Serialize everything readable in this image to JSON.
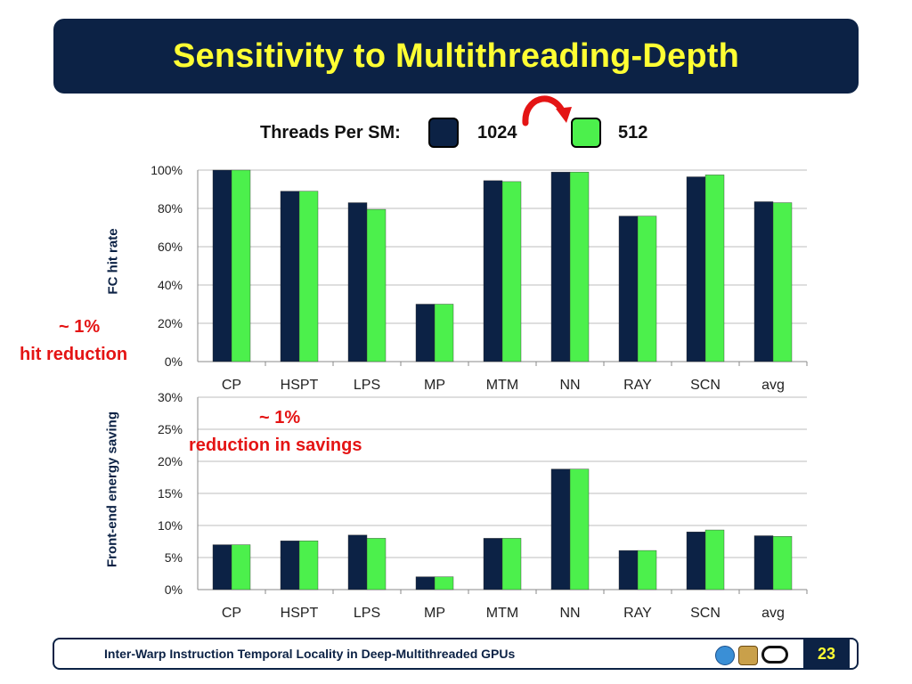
{
  "title": "Sensitivity to Multithreading-Depth",
  "legend": {
    "label": "Threads Per SM:",
    "items": [
      {
        "name": "1024",
        "color": "#0c2245"
      },
      {
        "name": "512",
        "color": "#4cf04c"
      }
    ]
  },
  "colors": {
    "title_bg": "#0c2245",
    "title_text": "#ffff33",
    "annotation": "#e41414",
    "arrow": "#e41414"
  },
  "annotations": {
    "top_line1": "~ 1%",
    "top_line2": "hit reduction",
    "bottom_line1": "~ 1%",
    "bottom_line2": "reduction in savings"
  },
  "chart_data": [
    {
      "type": "bar",
      "ylabel": "FC hit rate",
      "ylim": [
        0,
        100
      ],
      "yticks": [
        "0%",
        "20%",
        "40%",
        "60%",
        "80%",
        "100%"
      ],
      "ytick_values": [
        0,
        20,
        40,
        60,
        80,
        100
      ],
      "grid": true,
      "categories": [
        "CP",
        "HSPT",
        "LPS",
        "MP",
        "MTM",
        "NN",
        "RAY",
        "SCN",
        "avg"
      ],
      "series": [
        {
          "name": "1024",
          "values": [
            100,
            89,
            83,
            30,
            94.5,
            99,
            76,
            96.5,
            83.5
          ]
        },
        {
          "name": "512",
          "values": [
            100,
            89,
            79.5,
            30,
            94,
            99,
            76,
            97.5,
            83
          ]
        }
      ]
    },
    {
      "type": "bar",
      "ylabel": "Front-end energy saving",
      "ylim": [
        0,
        30
      ],
      "yticks": [
        "0%",
        "5%",
        "10%",
        "15%",
        "20%",
        "25%",
        "30%"
      ],
      "ytick_values": [
        0,
        5,
        10,
        15,
        20,
        25,
        30
      ],
      "grid": true,
      "categories": [
        "CP",
        "HSPT",
        "LPS",
        "MP",
        "MTM",
        "NN",
        "RAY",
        "SCN",
        "avg"
      ],
      "series": [
        {
          "name": "1024",
          "values": [
            7,
            7.6,
            8.5,
            2,
            8,
            18.8,
            6.1,
            9,
            8.4
          ]
        },
        {
          "name": "512",
          "values": [
            7,
            7.6,
            8,
            2,
            8,
            18.8,
            6.1,
            9.3,
            8.3
          ]
        }
      ]
    }
  ],
  "footer": {
    "text": "Inter-Warp Instruction Temporal Locality in Deep-Multithreaded GPUs",
    "page": "23",
    "logos": [
      "university-logo-icon",
      "crest-logo-icon",
      "chain-logo-icon"
    ]
  }
}
